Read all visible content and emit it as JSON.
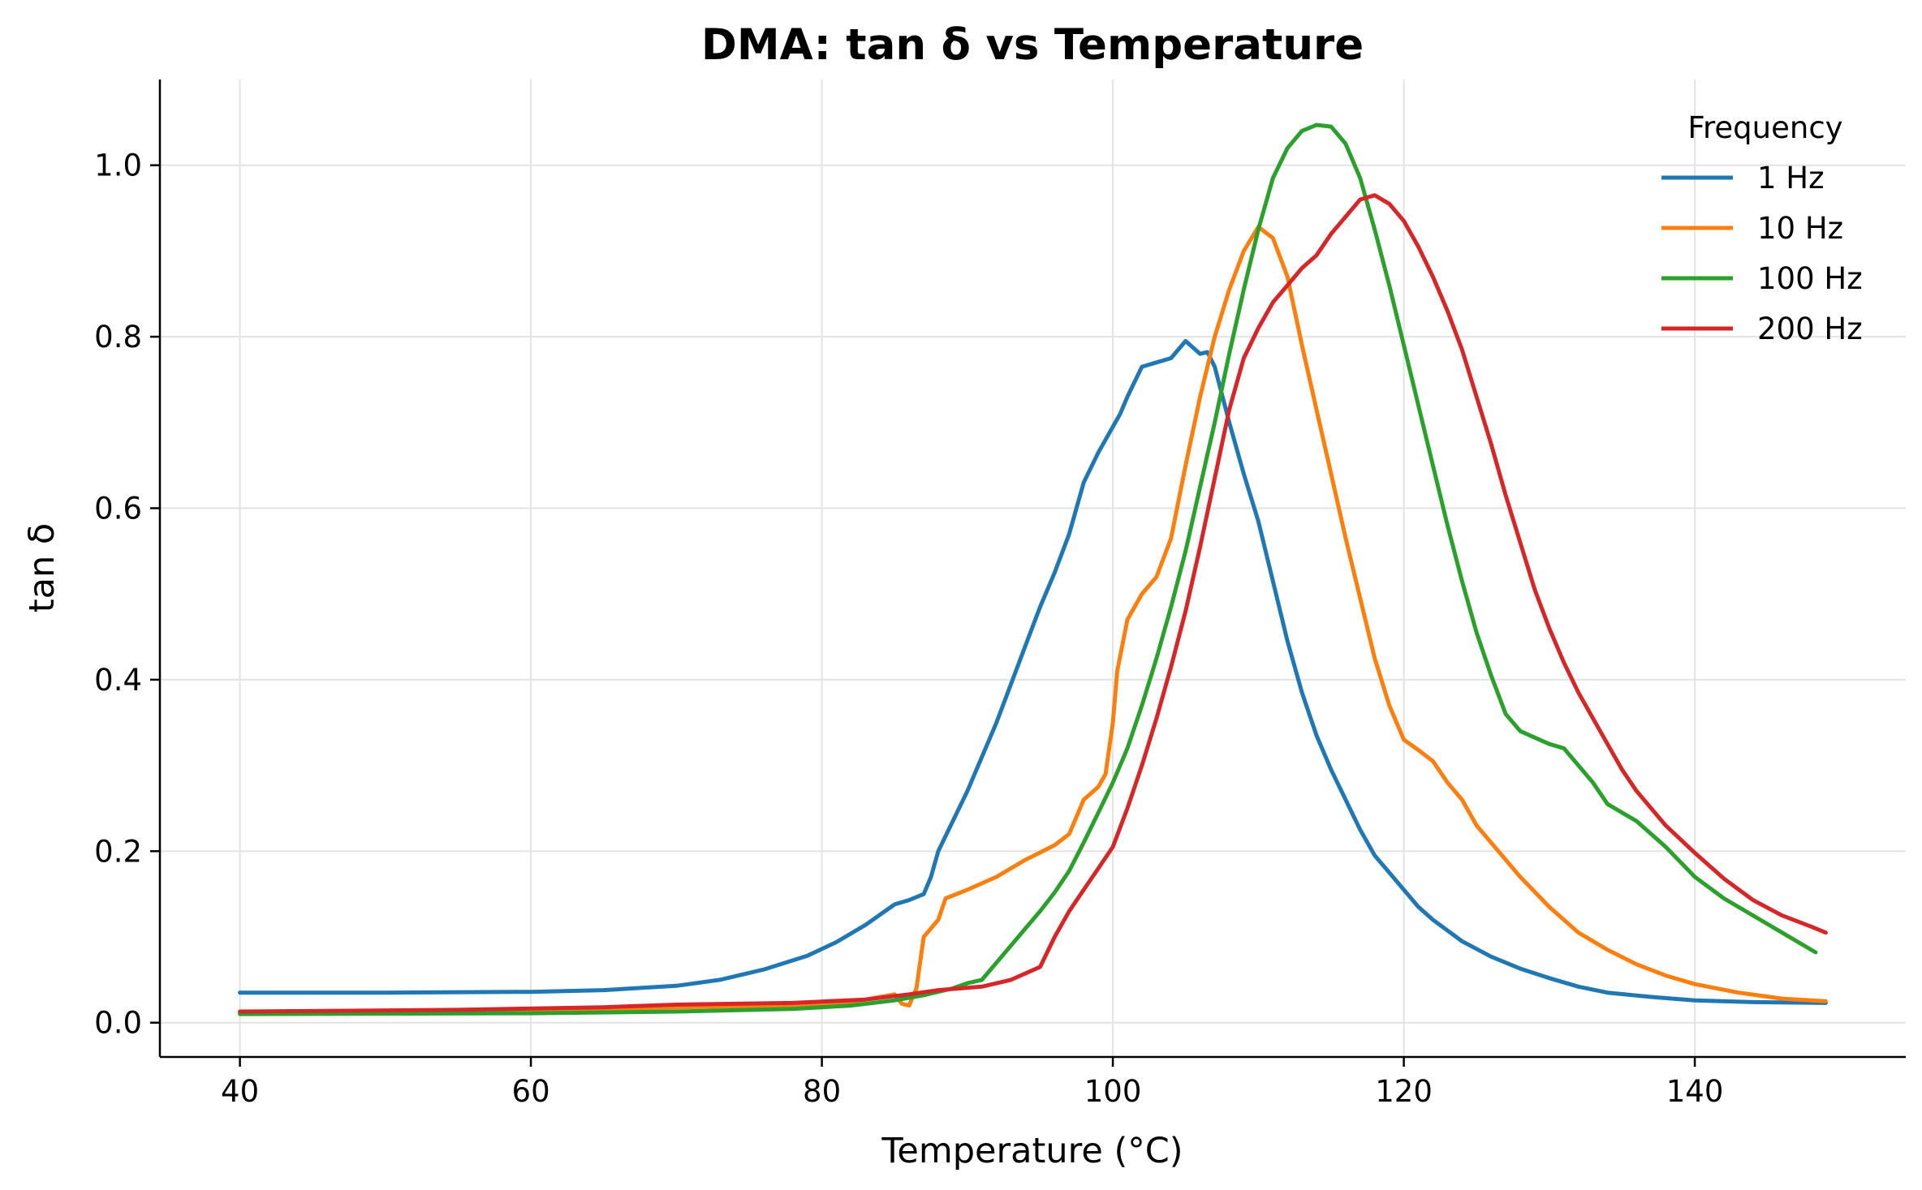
{
  "chart_data": {
    "type": "line",
    "title": "DMA: tan δ vs Temperature",
    "xlabel": "Temperature (°C)",
    "ylabel": "tan δ",
    "xlim": [
      34.5,
      154.5
    ],
    "ylim": [
      -0.04,
      1.1
    ],
    "xticks": [
      40,
      60,
      80,
      100,
      120,
      140
    ],
    "yticks": [
      0.0,
      0.2,
      0.4,
      0.6,
      0.8,
      1.0
    ],
    "xtick_labels": [
      "40",
      "60",
      "80",
      "100",
      "120",
      "140"
    ],
    "ytick_labels": [
      "0.0",
      "0.2",
      "0.4",
      "0.6",
      "0.8",
      "1.0"
    ],
    "grid": true,
    "legend": {
      "title": "Frequency",
      "position": "top-right"
    },
    "series": [
      {
        "name": "1 Hz",
        "color": "#1f77b4",
        "points": [
          [
            40,
            0.035
          ],
          [
            50,
            0.035
          ],
          [
            60,
            0.036
          ],
          [
            65,
            0.038
          ],
          [
            70,
            0.043
          ],
          [
            73,
            0.05
          ],
          [
            76,
            0.062
          ],
          [
            79,
            0.078
          ],
          [
            81,
            0.094
          ],
          [
            83,
            0.114
          ],
          [
            85,
            0.138
          ],
          [
            86,
            0.143
          ],
          [
            87,
            0.15
          ],
          [
            87.5,
            0.17
          ],
          [
            88,
            0.2
          ],
          [
            89,
            0.235
          ],
          [
            90,
            0.27
          ],
          [
            91,
            0.31
          ],
          [
            92,
            0.35
          ],
          [
            93,
            0.395
          ],
          [
            94,
            0.44
          ],
          [
            95,
            0.485
          ],
          [
            96,
            0.525
          ],
          [
            97,
            0.57
          ],
          [
            98,
            0.63
          ],
          [
            99,
            0.665
          ],
          [
            100,
            0.695
          ],
          [
            100.5,
            0.71
          ],
          [
            101,
            0.73
          ],
          [
            102,
            0.765
          ],
          [
            103,
            0.77
          ],
          [
            104,
            0.775
          ],
          [
            105,
            0.795
          ],
          [
            106,
            0.78
          ],
          [
            106.5,
            0.782
          ],
          [
            107,
            0.765
          ],
          [
            108,
            0.7
          ],
          [
            109,
            0.64
          ],
          [
            110,
            0.585
          ],
          [
            111,
            0.515
          ],
          [
            112,
            0.445
          ],
          [
            113,
            0.385
          ],
          [
            114,
            0.335
          ],
          [
            115,
            0.295
          ],
          [
            116,
            0.26
          ],
          [
            117,
            0.225
          ],
          [
            118,
            0.195
          ],
          [
            119,
            0.175
          ],
          [
            120,
            0.155
          ],
          [
            121,
            0.135
          ],
          [
            122,
            0.12
          ],
          [
            124,
            0.095
          ],
          [
            126,
            0.077
          ],
          [
            128,
            0.063
          ],
          [
            130,
            0.052
          ],
          [
            132,
            0.042
          ],
          [
            134,
            0.035
          ],
          [
            137,
            0.03
          ],
          [
            140,
            0.026
          ],
          [
            144,
            0.024
          ],
          [
            149,
            0.023
          ]
        ]
      },
      {
        "name": "10 Hz",
        "color": "#ff7f0e",
        "points": [
          [
            40,
            0.012
          ],
          [
            60,
            0.014
          ],
          [
            70,
            0.018
          ],
          [
            78,
            0.02
          ],
          [
            82,
            0.024
          ],
          [
            85,
            0.033
          ],
          [
            85.5,
            0.022
          ],
          [
            86,
            0.02
          ],
          [
            86.5,
            0.04
          ],
          [
            87,
            0.1
          ],
          [
            88,
            0.12
          ],
          [
            88.5,
            0.145
          ],
          [
            90,
            0.155
          ],
          [
            92,
            0.17
          ],
          [
            94,
            0.19
          ],
          [
            96,
            0.207
          ],
          [
            97,
            0.22
          ],
          [
            98,
            0.26
          ],
          [
            99,
            0.275
          ],
          [
            99.5,
            0.29
          ],
          [
            100,
            0.35
          ],
          [
            100.3,
            0.41
          ],
          [
            101,
            0.47
          ],
          [
            102,
            0.5
          ],
          [
            103,
            0.52
          ],
          [
            104,
            0.565
          ],
          [
            105,
            0.65
          ],
          [
            106,
            0.73
          ],
          [
            107,
            0.8
          ],
          [
            108,
            0.855
          ],
          [
            109,
            0.9
          ],
          [
            110,
            0.928
          ],
          [
            111,
            0.915
          ],
          [
            112,
            0.87
          ],
          [
            113,
            0.79
          ],
          [
            114,
            0.715
          ],
          [
            115,
            0.64
          ],
          [
            116,
            0.565
          ],
          [
            117,
            0.495
          ],
          [
            118,
            0.425
          ],
          [
            119,
            0.37
          ],
          [
            120,
            0.33
          ],
          [
            121,
            0.318
          ],
          [
            122,
            0.305
          ],
          [
            123,
            0.28
          ],
          [
            124,
            0.26
          ],
          [
            125,
            0.23
          ],
          [
            126,
            0.21
          ],
          [
            128,
            0.17
          ],
          [
            130,
            0.135
          ],
          [
            132,
            0.105
          ],
          [
            134,
            0.085
          ],
          [
            136,
            0.068
          ],
          [
            138,
            0.055
          ],
          [
            140,
            0.045
          ],
          [
            143,
            0.035
          ],
          [
            146,
            0.028
          ],
          [
            149,
            0.025
          ]
        ]
      },
      {
        "name": "100 Hz",
        "color": "#2ca02c",
        "points": [
          [
            40,
            0.01
          ],
          [
            60,
            0.011
          ],
          [
            70,
            0.013
          ],
          [
            78,
            0.016
          ],
          [
            82,
            0.02
          ],
          [
            85,
            0.026
          ],
          [
            87,
            0.032
          ],
          [
            89,
            0.04
          ],
          [
            90,
            0.046
          ],
          [
            91,
            0.05
          ],
          [
            92,
            0.07
          ],
          [
            93,
            0.09
          ],
          [
            94,
            0.11
          ],
          [
            95,
            0.13
          ],
          [
            96,
            0.152
          ],
          [
            97,
            0.177
          ],
          [
            98,
            0.21
          ],
          [
            99,
            0.245
          ],
          [
            100,
            0.28
          ],
          [
            101,
            0.32
          ],
          [
            102,
            0.37
          ],
          [
            103,
            0.425
          ],
          [
            104,
            0.485
          ],
          [
            105,
            0.55
          ],
          [
            106,
            0.625
          ],
          [
            107,
            0.7
          ],
          [
            108,
            0.78
          ],
          [
            109,
            0.855
          ],
          [
            110,
            0.925
          ],
          [
            111,
            0.985
          ],
          [
            112,
            1.02
          ],
          [
            113,
            1.04
          ],
          [
            114,
            1.047
          ],
          [
            115,
            1.045
          ],
          [
            116,
            1.025
          ],
          [
            117,
            0.985
          ],
          [
            118,
            0.925
          ],
          [
            119,
            0.86
          ],
          [
            120,
            0.79
          ],
          [
            121,
            0.72
          ],
          [
            122,
            0.65
          ],
          [
            123,
            0.58
          ],
          [
            124,
            0.515
          ],
          [
            125,
            0.455
          ],
          [
            126,
            0.405
          ],
          [
            127,
            0.36
          ],
          [
            128,
            0.34
          ],
          [
            130,
            0.325
          ],
          [
            131,
            0.32
          ],
          [
            132,
            0.3
          ],
          [
            133,
            0.28
          ],
          [
            134,
            0.255
          ],
          [
            136,
            0.235
          ],
          [
            138,
            0.205
          ],
          [
            140,
            0.17
          ],
          [
            142,
            0.145
          ],
          [
            144,
            0.125
          ],
          [
            146,
            0.105
          ],
          [
            148,
            0.085
          ],
          [
            148.3,
            0.082
          ]
        ]
      },
      {
        "name": "200 Hz",
        "color": "#d62728",
        "points": [
          [
            40,
            0.013
          ],
          [
            55,
            0.015
          ],
          [
            65,
            0.018
          ],
          [
            70,
            0.021
          ],
          [
            78,
            0.023
          ],
          [
            83,
            0.027
          ],
          [
            86,
            0.033
          ],
          [
            88,
            0.038
          ],
          [
            91,
            0.042
          ],
          [
            93,
            0.05
          ],
          [
            95,
            0.065
          ],
          [
            96,
            0.1
          ],
          [
            97,
            0.13
          ],
          [
            98,
            0.155
          ],
          [
            99,
            0.18
          ],
          [
            100,
            0.205
          ],
          [
            101,
            0.25
          ],
          [
            102,
            0.3
          ],
          [
            103,
            0.355
          ],
          [
            104,
            0.415
          ],
          [
            105,
            0.48
          ],
          [
            106,
            0.555
          ],
          [
            107,
            0.635
          ],
          [
            108,
            0.715
          ],
          [
            109,
            0.775
          ],
          [
            110,
            0.81
          ],
          [
            111,
            0.84
          ],
          [
            112,
            0.86
          ],
          [
            113,
            0.88
          ],
          [
            114,
            0.895
          ],
          [
            115,
            0.92
          ],
          [
            116,
            0.94
          ],
          [
            117,
            0.96
          ],
          [
            118,
            0.965
          ],
          [
            119,
            0.955
          ],
          [
            120,
            0.935
          ],
          [
            121,
            0.905
          ],
          [
            122,
            0.87
          ],
          [
            123,
            0.83
          ],
          [
            124,
            0.785
          ],
          [
            125,
            0.73
          ],
          [
            126,
            0.675
          ],
          [
            127,
            0.615
          ],
          [
            128,
            0.56
          ],
          [
            129,
            0.505
          ],
          [
            130,
            0.46
          ],
          [
            131,
            0.42
          ],
          [
            132,
            0.385
          ],
          [
            133,
            0.355
          ],
          [
            134,
            0.325
          ],
          [
            135,
            0.295
          ],
          [
            136,
            0.27
          ],
          [
            138,
            0.23
          ],
          [
            140,
            0.198
          ],
          [
            142,
            0.168
          ],
          [
            144,
            0.143
          ],
          [
            146,
            0.125
          ],
          [
            148,
            0.112
          ],
          [
            149,
            0.105
          ]
        ]
      }
    ]
  }
}
